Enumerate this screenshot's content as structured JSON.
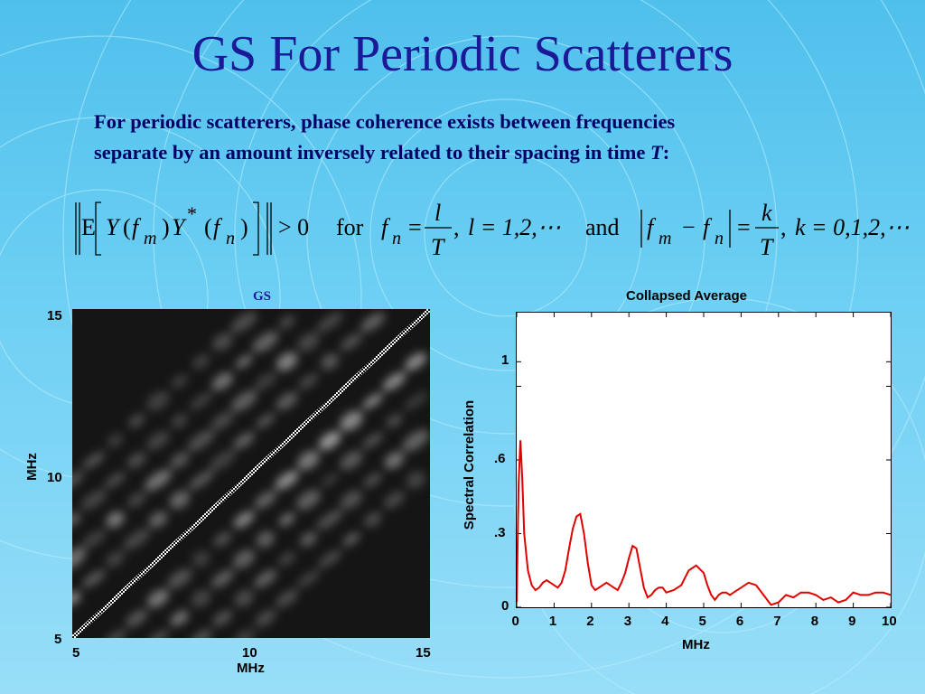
{
  "slide": {
    "title": "GS For Periodic Scatterers",
    "intro_line1": "For periodic scatterers, phase coherence exists between frequencies",
    "intro_line2_prefix": "separate by an amount inversely related to their spacing in time ",
    "intro_line2_var": "T",
    "intro_line2_suffix": ":"
  },
  "equation": {
    "expectation_symbol": "E",
    "cond1": "> 0",
    "word_for": "for",
    "fn_lhs": "f",
    "fn_sub": "n",
    "frac1_num": "l",
    "frac1_den": "T",
    "l_values": "l = 1,2,⋯",
    "word_and": "and",
    "frac2_num": "k",
    "frac2_den": "T",
    "k_values": "k = 0,1,2,⋯",
    "Y": "Y",
    "f": "f",
    "sub_m": "m",
    "sub_n": "n",
    "star": "*"
  },
  "colors": {
    "title": "#1a1a99",
    "intro": "#000066",
    "curve": "#e00000"
  },
  "chart_data": [
    {
      "type": "heatmap",
      "title": "GS",
      "xlabel": "MHz",
      "ylabel": "MHz",
      "xlim": [
        5,
        15
      ],
      "ylim": [
        5,
        15
      ],
      "x_ticks": [
        "5",
        "10",
        "15"
      ],
      "y_ticks": [
        "5",
        "10",
        "15"
      ],
      "colormap": "gray",
      "diagonal": "bright main diagonal with parallel off-diagonal bands"
    },
    {
      "type": "line",
      "title": "Collapsed Average",
      "xlabel": "MHz",
      "ylabel": "Spectral Correlation",
      "xlim": [
        0,
        10
      ],
      "ylim": [
        0,
        1.2
      ],
      "x_ticks": [
        "0",
        "1",
        "2",
        "3",
        "4",
        "5",
        "6",
        "7",
        "8",
        "9",
        "10"
      ],
      "y_ticks": [
        {
          "value": 0,
          "label": "0"
        },
        {
          "value": 0.3,
          "label": ".3"
        },
        {
          "value": 0.6,
          "label": ".6"
        },
        {
          "value": 0.9,
          "label": ""
        },
        {
          "value": 1.0,
          "label": "1"
        }
      ],
      "series": [
        {
          "color": "#e00000",
          "x": [
            0.0,
            0.05,
            0.1,
            0.15,
            0.2,
            0.3,
            0.4,
            0.5,
            0.6,
            0.7,
            0.8,
            0.9,
            1.0,
            1.1,
            1.2,
            1.3,
            1.4,
            1.5,
            1.6,
            1.7,
            1.8,
            1.9,
            2.0,
            2.1,
            2.2,
            2.3,
            2.4,
            2.5,
            2.6,
            2.7,
            2.8,
            2.9,
            3.0,
            3.1,
            3.2,
            3.3,
            3.4,
            3.5,
            3.6,
            3.7,
            3.8,
            3.9,
            4.0,
            4.2,
            4.4,
            4.6,
            4.8,
            5.0,
            5.1,
            5.2,
            5.3,
            5.4,
            5.5,
            5.6,
            5.7,
            5.8,
            6.0,
            6.2,
            6.4,
            6.6,
            6.8,
            7.0,
            7.2,
            7.4,
            7.6,
            7.8,
            8.0,
            8.2,
            8.4,
            8.6,
            8.8,
            9.0,
            9.2,
            9.4,
            9.6,
            9.8,
            10.0
          ],
          "values": [
            0.02,
            0.5,
            0.68,
            0.52,
            0.3,
            0.15,
            0.09,
            0.07,
            0.08,
            0.1,
            0.11,
            0.1,
            0.09,
            0.08,
            0.1,
            0.15,
            0.24,
            0.32,
            0.37,
            0.38,
            0.3,
            0.18,
            0.09,
            0.07,
            0.08,
            0.09,
            0.1,
            0.09,
            0.08,
            0.07,
            0.1,
            0.14,
            0.2,
            0.25,
            0.24,
            0.16,
            0.08,
            0.04,
            0.05,
            0.07,
            0.08,
            0.08,
            0.06,
            0.07,
            0.09,
            0.15,
            0.17,
            0.14,
            0.09,
            0.05,
            0.03,
            0.05,
            0.06,
            0.06,
            0.05,
            0.06,
            0.08,
            0.1,
            0.09,
            0.05,
            0.01,
            0.02,
            0.05,
            0.04,
            0.06,
            0.06,
            0.05,
            0.03,
            0.04,
            0.02,
            0.03,
            0.06,
            0.05,
            0.05,
            0.06,
            0.06,
            0.05
          ]
        }
      ]
    }
  ]
}
